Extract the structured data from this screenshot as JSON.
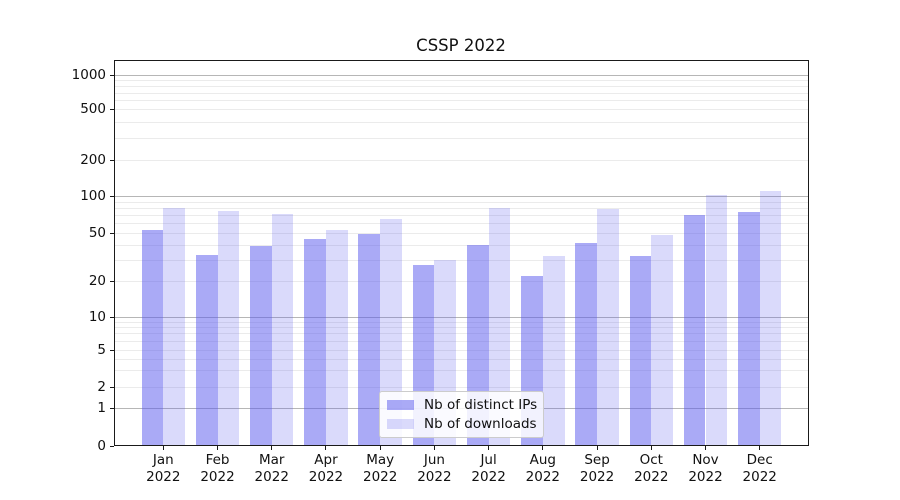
{
  "chart_data": {
    "type": "bar",
    "title": "CSSP 2022",
    "year": "2022",
    "categories": [
      "Jan",
      "Feb",
      "Mar",
      "Apr",
      "May",
      "Jun",
      "Jul",
      "Aug",
      "Sep",
      "Oct",
      "Nov",
      "Dec"
    ],
    "series": [
      {
        "name": "Nb of distinct IPs",
        "color": "rgba(85,85,238,0.5)",
        "values": [
          53,
          33,
          39,
          44,
          49,
          27,
          40,
          22,
          41,
          32,
          70,
          74
        ]
      },
      {
        "name": "Nb of downloads",
        "color": "rgba(85,85,238,0.22)",
        "values": [
          80,
          76,
          71,
          53,
          65,
          30,
          80,
          32,
          79,
          48,
          103,
          110
        ]
      }
    ],
    "yscale": "symlog",
    "y_ticks": [
      0,
      1,
      2,
      5,
      10,
      20,
      50,
      100,
      200,
      500,
      1000
    ],
    "ylim": [
      0,
      1370
    ],
    "grid": {
      "major_lines_at": [
        1,
        10,
        100,
        1000
      ],
      "major_color": "#b6b6b6",
      "minor_color": "#ebebeb"
    },
    "legend_position": "lower center",
    "colors": {
      "bars_base": "#5555ee",
      "axis": "#1a1a1a",
      "background": "#ffffff"
    }
  }
}
